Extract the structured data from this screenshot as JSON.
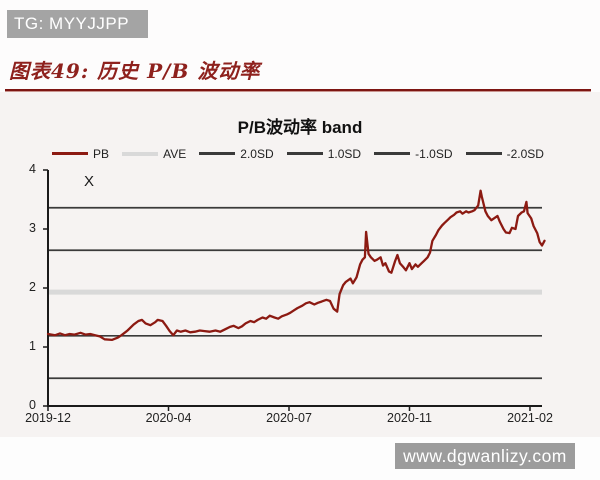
{
  "banner": {
    "text": "TG: MYYJJPP"
  },
  "heading": {
    "text": "图表49: 历史 P/B 波动率"
  },
  "watermark": {
    "text": "www.dgwanlizy.com"
  },
  "chart_data": {
    "type": "line",
    "title": "P/B波动率 band",
    "annotation": "X",
    "ylim": [
      0,
      4
    ],
    "y_ticks": [
      4,
      3,
      2,
      1,
      0
    ],
    "x_tick_labels": [
      "2019-12",
      "2020-04",
      "2020-07",
      "2020-11",
      "2021-02"
    ],
    "grid": "horizontal-band-lines-only",
    "legend_position": "top",
    "colors": {
      "pb_line": "#8c1a12",
      "ave_line": "#d9d9d9",
      "sd_line": "#3a3a3a",
      "axis": "#1a1a1a"
    },
    "legend": [
      {
        "name": "PB",
        "color": "#8c1a12"
      },
      {
        "name": "AVE",
        "color": "#d9d9d9"
      },
      {
        "name": "2.0SD",
        "color": "#3a3a3a"
      },
      {
        "name": "1.0SD",
        "color": "#3a3a3a"
      },
      {
        "name": "-1.0SD",
        "color": "#3a3a3a"
      },
      {
        "name": "-2.0SD",
        "color": "#3a3a3a"
      }
    ],
    "hlines": [
      {
        "name": "AVE",
        "value": 1.93
      },
      {
        "name": "2.0SD",
        "value": 3.36
      },
      {
        "name": "1.0SD",
        "value": 2.64
      },
      {
        "name": "-1.0SD",
        "value": 1.19
      },
      {
        "name": "-2.0SD",
        "value": 0.47
      }
    ],
    "x_axis_note": "x = position in label intervals (0 = 2019-12 tick, 4 = 2021-02 tick)",
    "series": [
      {
        "name": "PB",
        "color": "#8c1a12",
        "points": [
          [
            0,
            1.22
          ],
          [
            0.06,
            1.2
          ],
          [
            0.1,
            1.23
          ],
          [
            0.14,
            1.2
          ],
          [
            0.18,
            1.22
          ],
          [
            0.22,
            1.21
          ],
          [
            0.27,
            1.24
          ],
          [
            0.31,
            1.21
          ],
          [
            0.35,
            1.22
          ],
          [
            0.39,
            1.2
          ],
          [
            0.43,
            1.18
          ],
          [
            0.47,
            1.13
          ],
          [
            0.53,
            1.12
          ],
          [
            0.58,
            1.16
          ],
          [
            0.61,
            1.2
          ],
          [
            0.66,
            1.28
          ],
          [
            0.71,
            1.38
          ],
          [
            0.75,
            1.44
          ],
          [
            0.78,
            1.46
          ],
          [
            0.81,
            1.4
          ],
          [
            0.85,
            1.37
          ],
          [
            0.89,
            1.42
          ],
          [
            0.91,
            1.46
          ],
          [
            0.95,
            1.44
          ],
          [
            0.98,
            1.36
          ],
          [
            1.01,
            1.27
          ],
          [
            1.04,
            1.2
          ],
          [
            1.07,
            1.28
          ],
          [
            1.1,
            1.26
          ],
          [
            1.14,
            1.28
          ],
          [
            1.18,
            1.25
          ],
          [
            1.22,
            1.26
          ],
          [
            1.26,
            1.28
          ],
          [
            1.3,
            1.27
          ],
          [
            1.34,
            1.26
          ],
          [
            1.39,
            1.28
          ],
          [
            1.43,
            1.26
          ],
          [
            1.47,
            1.3
          ],
          [
            1.51,
            1.34
          ],
          [
            1.54,
            1.36
          ],
          [
            1.58,
            1.32
          ],
          [
            1.61,
            1.35
          ],
          [
            1.64,
            1.4
          ],
          [
            1.68,
            1.44
          ],
          [
            1.71,
            1.42
          ],
          [
            1.74,
            1.46
          ],
          [
            1.78,
            1.5
          ],
          [
            1.81,
            1.48
          ],
          [
            1.84,
            1.53
          ],
          [
            1.88,
            1.5
          ],
          [
            1.91,
            1.48
          ],
          [
            1.94,
            1.52
          ],
          [
            1.98,
            1.55
          ],
          [
            2.01,
            1.58
          ],
          [
            2.04,
            1.62
          ],
          [
            2.07,
            1.66
          ],
          [
            2.11,
            1.7
          ],
          [
            2.14,
            1.74
          ],
          [
            2.17,
            1.76
          ],
          [
            2.21,
            1.72
          ],
          [
            2.24,
            1.75
          ],
          [
            2.27,
            1.77
          ],
          [
            2.31,
            1.8
          ],
          [
            2.34,
            1.78
          ],
          [
            2.37,
            1.65
          ],
          [
            2.4,
            1.6
          ],
          [
            2.42,
            1.9
          ],
          [
            2.45,
            2.05
          ],
          [
            2.47,
            2.1
          ],
          [
            2.51,
            2.16
          ],
          [
            2.53,
            2.08
          ],
          [
            2.56,
            2.18
          ],
          [
            2.59,
            2.4
          ],
          [
            2.61,
            2.48
          ],
          [
            2.63,
            2.52
          ],
          [
            2.64,
            2.95
          ],
          [
            2.66,
            2.58
          ],
          [
            2.68,
            2.52
          ],
          [
            2.71,
            2.46
          ],
          [
            2.73,
            2.48
          ],
          [
            2.76,
            2.52
          ],
          [
            2.78,
            2.38
          ],
          [
            2.8,
            2.42
          ],
          [
            2.83,
            2.28
          ],
          [
            2.85,
            2.26
          ],
          [
            2.88,
            2.45
          ],
          [
            2.9,
            2.56
          ],
          [
            2.92,
            2.42
          ],
          [
            2.95,
            2.35
          ],
          [
            2.97,
            2.3
          ],
          [
            3.0,
            2.42
          ],
          [
            3.02,
            2.32
          ],
          [
            3.05,
            2.4
          ],
          [
            3.07,
            2.36
          ],
          [
            3.1,
            2.42
          ],
          [
            3.12,
            2.46
          ],
          [
            3.15,
            2.52
          ],
          [
            3.17,
            2.6
          ],
          [
            3.19,
            2.8
          ],
          [
            3.22,
            2.9
          ],
          [
            3.24,
            2.98
          ],
          [
            3.27,
            3.06
          ],
          [
            3.29,
            3.1
          ],
          [
            3.32,
            3.16
          ],
          [
            3.34,
            3.2
          ],
          [
            3.37,
            3.24
          ],
          [
            3.39,
            3.28
          ],
          [
            3.42,
            3.3
          ],
          [
            3.44,
            3.26
          ],
          [
            3.47,
            3.3
          ],
          [
            3.49,
            3.28
          ],
          [
            3.52,
            3.3
          ],
          [
            3.54,
            3.32
          ],
          [
            3.57,
            3.4
          ],
          [
            3.59,
            3.65
          ],
          [
            3.6,
            3.55
          ],
          [
            3.63,
            3.3
          ],
          [
            3.65,
            3.22
          ],
          [
            3.68,
            3.15
          ],
          [
            3.7,
            3.18
          ],
          [
            3.73,
            3.22
          ],
          [
            3.75,
            3.12
          ],
          [
            3.78,
            3.0
          ],
          [
            3.8,
            2.94
          ],
          [
            3.83,
            2.93
          ],
          [
            3.85,
            3.02
          ],
          [
            3.88,
            3.0
          ],
          [
            3.9,
            3.22
          ],
          [
            3.93,
            3.28
          ],
          [
            3.95,
            3.3
          ],
          [
            3.97,
            3.46
          ],
          [
            3.98,
            3.27
          ],
          [
            4.01,
            3.18
          ],
          [
            4.03,
            3.05
          ],
          [
            4.06,
            2.93
          ],
          [
            4.08,
            2.78
          ],
          [
            4.1,
            2.72
          ],
          [
            4.12,
            2.8
          ]
        ]
      }
    ]
  }
}
